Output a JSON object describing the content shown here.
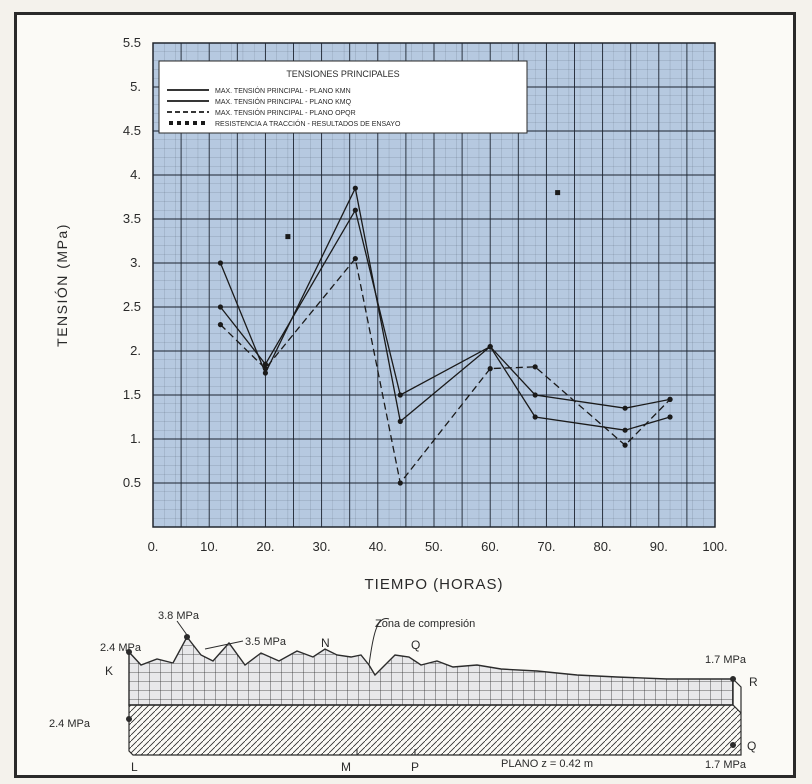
{
  "colors": {
    "plot_bg": "#b6c9e0",
    "grid": "#1c2430",
    "line": "#1a1a1a",
    "mesh_fill": "#e8e8ea",
    "mesh_line": "#2b2b2b",
    "frame": "#2a2a2a"
  },
  "chart_data": {
    "type": "line",
    "xlabel": "TIEMPO (HORAS)",
    "ylabel": "TENSIÓN (MPa)",
    "xlim": [
      0,
      100
    ],
    "ylim": [
      0,
      5.5
    ],
    "x_ticks": [
      0,
      10,
      20,
      30,
      40,
      50,
      60,
      70,
      80,
      90,
      100
    ],
    "x_tick_labels": [
      "0.",
      "10.",
      "20.",
      "30.",
      "40.",
      "50.",
      "60.",
      "70.",
      "80.",
      "90.",
      "100."
    ],
    "y_ticks": [
      0.5,
      1,
      1.5,
      2,
      2.5,
      3,
      3.5,
      4,
      4.5,
      5,
      5.5
    ],
    "y_tick_labels": [
      "0.5",
      "1.",
      "1.5",
      "2.",
      "2.5",
      "3.",
      "3.5",
      "4.",
      "4.5",
      "5.",
      "5.5"
    ],
    "grid": true,
    "legend_position": "top-left",
    "legend_title": "TENSIONES PRINCIPALES",
    "series": [
      {
        "name": "MAX. TENSIÓN PRINCIPAL - PLANO KMN",
        "style": "solid",
        "points": [
          [
            12,
            3.0
          ],
          [
            20,
            1.75
          ],
          [
            36,
            3.85
          ],
          [
            44,
            1.2
          ],
          [
            60,
            2.05
          ],
          [
            68,
            1.5
          ],
          [
            84,
            1.35
          ],
          [
            92,
            1.45
          ]
        ]
      },
      {
        "name": "MAX. TENSIÓN PRINCIPAL - PLANO KMQ",
        "style": "solid",
        "points": [
          [
            12,
            2.5
          ],
          [
            20,
            1.85
          ],
          [
            36,
            3.6
          ],
          [
            44,
            1.5
          ],
          [
            60,
            2.05
          ],
          [
            68,
            1.25
          ],
          [
            84,
            1.1
          ],
          [
            92,
            1.25
          ]
        ]
      },
      {
        "name": "MAX. TENSIÓN PRINCIPAL - PLANO OPQR",
        "style": "dashed",
        "points": [
          [
            12,
            2.3
          ],
          [
            20,
            1.8
          ],
          [
            36,
            3.05
          ],
          [
            44,
            0.5
          ],
          [
            60,
            1.8
          ],
          [
            68,
            1.82
          ],
          [
            84,
            0.93
          ],
          [
            92,
            1.45
          ]
        ]
      },
      {
        "name": "RESISTENCIA A TRACCIÓN - RESULTADOS DE ENSAYO",
        "style": "markers",
        "points": [
          [
            24,
            3.3
          ],
          [
            72,
            3.8
          ]
        ]
      }
    ]
  },
  "diagram": {
    "zone_label": "Zona de compresión",
    "plane_label": "PLANO z = 0.42 m",
    "stress_labels": [
      "2.4 MPa",
      "3.8 MPa",
      "3.5 MPa",
      "2.4 MPa",
      "1.7 MPa",
      "1.7 MPa"
    ],
    "point_labels": [
      "K",
      "N",
      "Q",
      "L",
      "M",
      "P",
      "R",
      "Q"
    ]
  }
}
